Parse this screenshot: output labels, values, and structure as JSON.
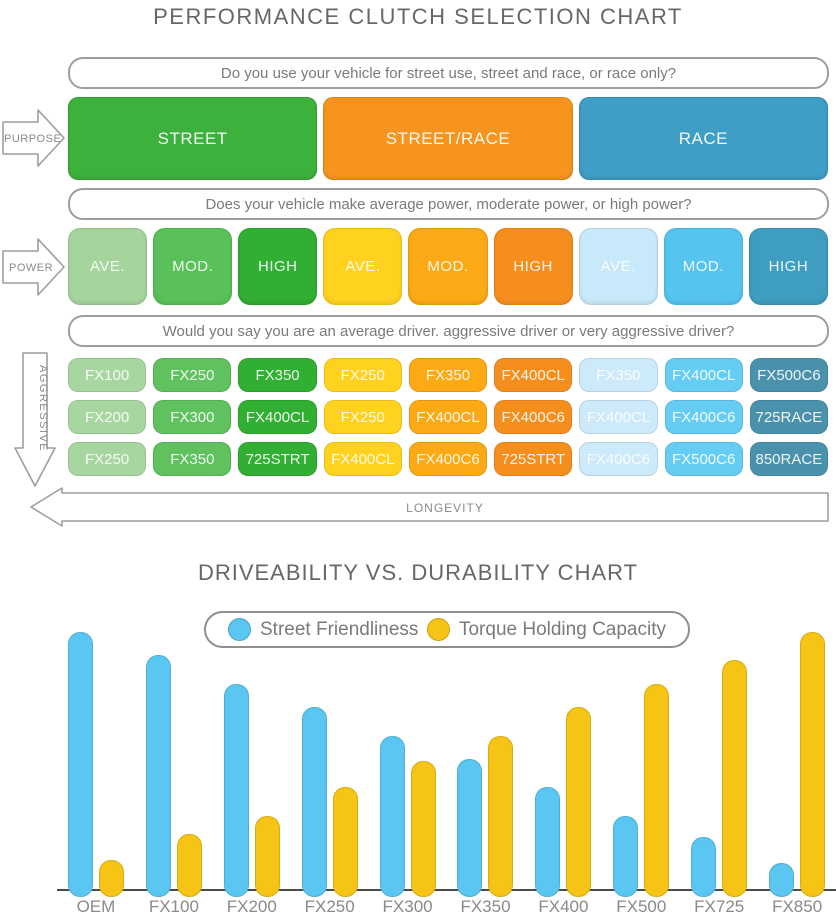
{
  "title": "PERFORMANCE CLUTCH SELECTION CHART",
  "flow": {
    "questions": {
      "purpose": "Do you use your vehicle for street use, street and race, or race only?",
      "power": "Does your vehicle make average power, moderate power, or high power?",
      "driver": "Would you say you are an average driver. aggressive driver or very aggressive driver?"
    },
    "axis_arrows": {
      "purpose": "PURPOSE",
      "power": "POWER",
      "aggressive": "AGGRESSIVE",
      "longevity": "LONGEVITY"
    },
    "purpose_blocks": [
      {
        "label": "STREET",
        "color": "#3cb23c"
      },
      {
        "label": "STREET/RACE",
        "color": "#f7941e"
      },
      {
        "label": "RACE",
        "color": "#3e9ec6"
      }
    ],
    "power_cells": [
      {
        "label": "AVE.",
        "color": "#a5d49d"
      },
      {
        "label": "MOD.",
        "color": "#5ac05a"
      },
      {
        "label": "HIGH",
        "color": "#31af33"
      },
      {
        "label": "AVE.",
        "color": "#ffd21f"
      },
      {
        "label": "MOD.",
        "color": "#fba914"
      },
      {
        "label": "HIGH",
        "color": "#f68e1e"
      },
      {
        "label": "AVE.",
        "color": "#c8e9f9"
      },
      {
        "label": "MOD.",
        "color": "#55c4ef"
      },
      {
        "label": "HIGH",
        "color": "#3f9dbf"
      }
    ],
    "grid": {
      "column_colors": [
        "#a8d6a0",
        "#5fc25f",
        "#31af33",
        "#ffd21f",
        "#fba914",
        "#f68e1e",
        "#cdeafa",
        "#65cdf3",
        "#4a92ab"
      ],
      "rows": [
        [
          "FX100",
          "FX250",
          "FX350",
          "FX250",
          "FX350",
          "FX400CL",
          "FX350",
          "FX400CL",
          "FX500C6"
        ],
        [
          "FX200",
          "FX300",
          "FX400CL",
          "FX250",
          "FX400CL",
          "FX400C6",
          "FX400CL",
          "FX400C6",
          "725RACE"
        ],
        [
          "FX250",
          "FX350",
          "725STRT",
          "FX400CL",
          "FX400C6",
          "725STRT",
          "FX400C6",
          "FX500C6",
          "850RACE"
        ]
      ]
    }
  },
  "chart_data": {
    "type": "bar",
    "title": "DRIVEABILITY VS. DURABILITY CHART",
    "categories": [
      "OEM",
      "FX100",
      "FX200",
      "FX250",
      "FX300",
      "FX350",
      "FX400",
      "FX500",
      "FX725",
      "FX850"
    ],
    "series": [
      {
        "name": "Street Friendliness",
        "color": "#5bc6f2",
        "values": [
          100,
          91,
          80,
          71,
          60,
          51,
          40,
          29,
          21,
          11
        ]
      },
      {
        "name": "Torque Holding Capacity",
        "color": "#f5c415",
        "values": [
          12,
          22,
          29,
          40,
          50,
          60,
          71,
          80,
          89,
          100
        ]
      }
    ],
    "ylim": [
      0,
      100
    ],
    "grid": false,
    "legend_position": "top-center",
    "xlabel": "",
    "ylabel": ""
  }
}
